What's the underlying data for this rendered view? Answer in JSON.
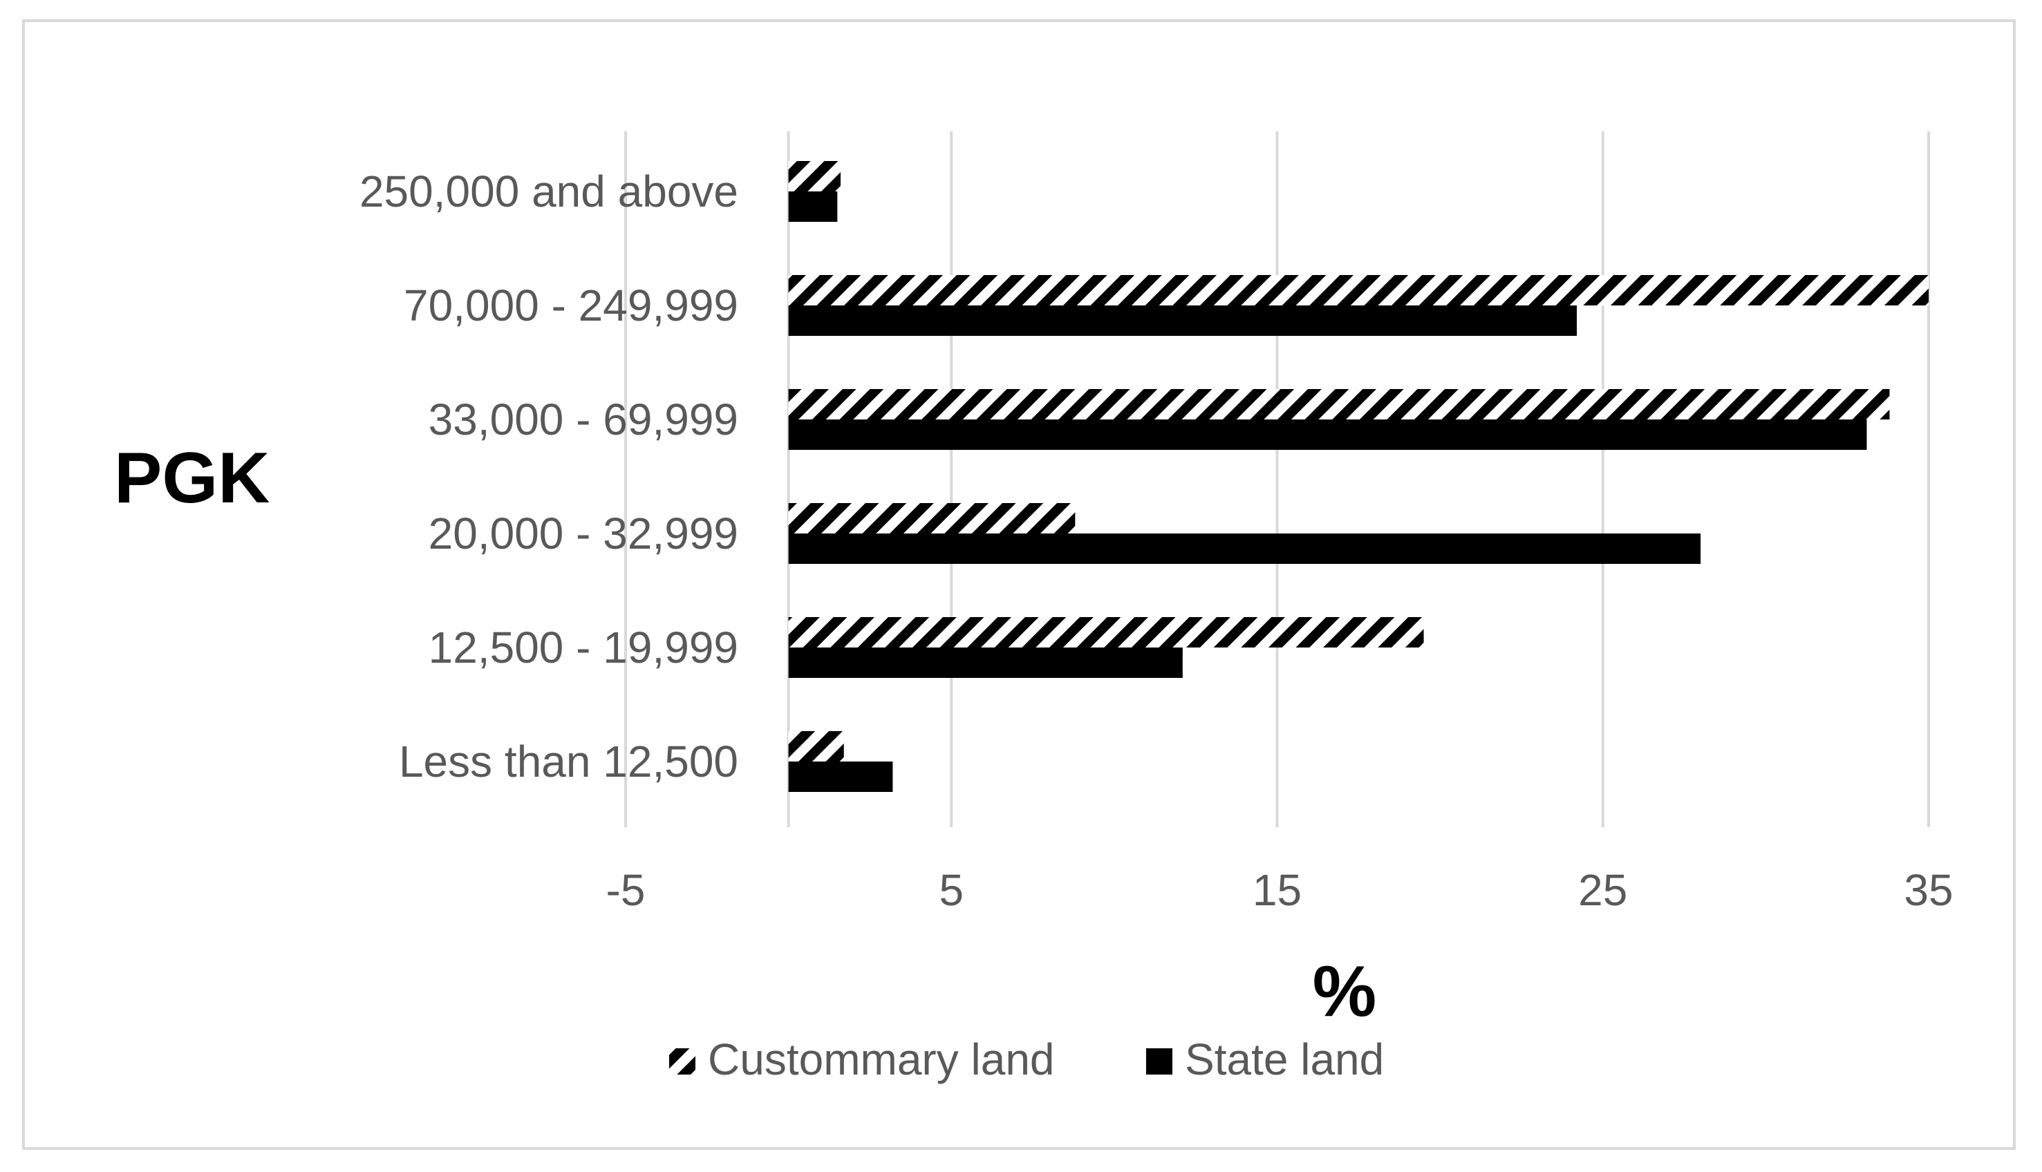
{
  "chart_data": {
    "type": "bar",
    "orientation": "horizontal",
    "categories": [
      "Less than 12,500",
      "12,500 - 19,999",
      "20,000 - 32,999",
      "33,000 - 69,999",
      "70,000 - 249,999",
      "250,000 and above"
    ],
    "series": [
      {
        "name": "Custommary land",
        "values": [
          1.7,
          19.5,
          8.8,
          33.8,
          35.0,
          1.6
        ],
        "pattern": "diagonal-hatch",
        "color": "#000000"
      },
      {
        "name": "State land",
        "values": [
          3.2,
          12.1,
          28.0,
          33.1,
          24.2,
          1.5
        ],
        "pattern": "solid",
        "color": "#000000"
      }
    ],
    "xlabel": "%",
    "ylabel": "PGK",
    "x_ticks": [
      "-5",
      "5",
      "15",
      "25",
      "35"
    ],
    "xlim": [
      -5,
      35
    ],
    "grid": "vertical",
    "legend": "bottom"
  }
}
